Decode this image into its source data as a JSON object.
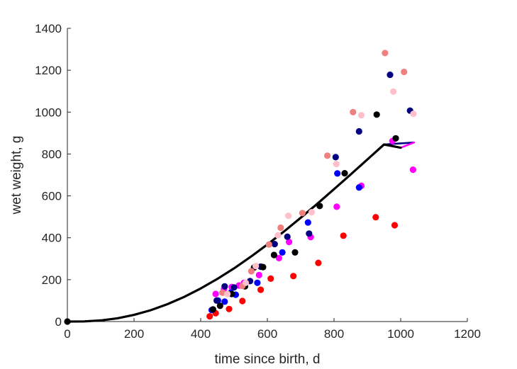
{
  "chart_data": {
    "type": "scatter",
    "title": "",
    "xlabel": "time since birth, d",
    "ylabel": "wet weight, g",
    "xlim": [
      0,
      1200
    ],
    "ylim": [
      0,
      1400
    ],
    "xticks": [
      "0",
      "200",
      "400",
      "600",
      "800",
      "1000",
      "1200"
    ],
    "yticks": [
      "0",
      "200",
      "400",
      "600",
      "800",
      "1000",
      "1200",
      "1400"
    ],
    "grid": false,
    "legend": "none",
    "series": [
      {
        "color": "#ff0000",
        "points": [
          [
            427,
            25
          ],
          [
            445,
            40
          ],
          [
            485,
            60
          ],
          [
            525,
            98
          ],
          [
            580,
            152
          ],
          [
            610,
            205
          ],
          [
            678,
            217
          ],
          [
            753,
            280
          ],
          [
            828,
            410
          ],
          [
            925,
            498
          ],
          [
            982,
            460
          ]
        ]
      },
      {
        "color": "#ff00ff",
        "points": [
          [
            445,
            132
          ],
          [
            470,
            155
          ],
          [
            493,
            165
          ],
          [
            515,
            172
          ],
          [
            530,
            185
          ],
          [
            575,
            222
          ],
          [
            635,
            303
          ],
          [
            665,
            380
          ],
          [
            730,
            403
          ],
          [
            808,
            548
          ],
          [
            882,
            648
          ],
          [
            975,
            862
          ],
          [
            1037,
            725
          ]
        ]
      },
      {
        "color": "#0000ff",
        "points": [
          [
            433,
            55
          ],
          [
            452,
            100
          ],
          [
            472,
            95
          ],
          [
            490,
            138
          ],
          [
            505,
            128
          ],
          [
            570,
            185
          ],
          [
            645,
            330
          ],
          [
            722,
            473
          ],
          [
            810,
            707
          ],
          [
            875,
            640
          ]
        ]
      },
      {
        "color": "#000080",
        "points": [
          [
            448,
            100
          ],
          [
            472,
            168
          ],
          [
            500,
            163
          ],
          [
            548,
            193
          ],
          [
            580,
            262
          ],
          [
            622,
            370
          ],
          [
            660,
            405
          ],
          [
            725,
            420
          ],
          [
            805,
            785
          ],
          [
            875,
            908
          ],
          [
            968,
            1178
          ],
          [
            1028,
            1007
          ]
        ]
      },
      {
        "color": "#000000",
        "points": [
          [
            0,
            0
          ],
          [
            437,
            58
          ],
          [
            458,
            75
          ],
          [
            493,
            132
          ],
          [
            533,
            168
          ],
          [
            560,
            258
          ],
          [
            587,
            260
          ],
          [
            620,
            318
          ],
          [
            683,
            330
          ],
          [
            757,
            552
          ],
          [
            832,
            708
          ],
          [
            928,
            988
          ],
          [
            985,
            875
          ]
        ]
      },
      {
        "color": "#f08080",
        "points": [
          [
            465,
            138
          ],
          [
            525,
            170
          ],
          [
            552,
            240
          ],
          [
            605,
            368
          ],
          [
            640,
            448
          ],
          [
            705,
            518
          ],
          [
            780,
            792
          ],
          [
            857,
            1000
          ],
          [
            953,
            1282
          ],
          [
            1010,
            1192
          ]
        ]
      },
      {
        "color": "#ffc0cb",
        "points": [
          [
            480,
            132
          ],
          [
            535,
            185
          ],
          [
            565,
            265
          ],
          [
            632,
            412
          ],
          [
            663,
            505
          ],
          [
            733,
            522
          ],
          [
            807,
            752
          ],
          [
            882,
            985
          ],
          [
            978,
            1098
          ],
          [
            1038,
            992
          ]
        ]
      }
    ],
    "fit_lines": [
      {
        "color": "#000080",
        "points": [
          [
            0,
            0
          ],
          [
            50,
            0.8
          ],
          [
            100,
            5.5
          ],
          [
            150,
            15.6
          ],
          [
            200,
            31.7
          ],
          [
            250,
            54.1
          ],
          [
            300,
            82.7
          ],
          [
            350,
            117.4
          ],
          [
            400,
            157.8
          ],
          [
            450,
            203.5
          ],
          [
            500,
            254.1
          ],
          [
            550,
            309.1
          ],
          [
            600,
            368.0
          ],
          [
            650,
            430.2
          ],
          [
            700,
            495.3
          ],
          [
            750,
            562.7
          ],
          [
            800,
            631.9
          ],
          [
            850,
            702.4
          ],
          [
            900,
            773.7
          ],
          [
            950,
            845.3
          ],
          [
            1040,
            855
          ]
        ]
      },
      {
        "color": "#ff00ff",
        "points": [
          [
            1000,
            830
          ],
          [
            1040,
            855
          ]
        ]
      },
      {
        "color": "#000000",
        "points": [
          [
            0,
            0
          ],
          [
            50,
            0.8
          ],
          [
            100,
            5.5
          ],
          [
            150,
            15.6
          ],
          [
            200,
            31.7
          ],
          [
            250,
            54.1
          ],
          [
            300,
            82.7
          ],
          [
            350,
            117.4
          ],
          [
            400,
            157.8
          ],
          [
            450,
            203.5
          ],
          [
            500,
            254.1
          ],
          [
            550,
            309.1
          ],
          [
            600,
            368.0
          ],
          [
            650,
            430.2
          ],
          [
            700,
            495.3
          ],
          [
            750,
            562.7
          ],
          [
            800,
            631.9
          ],
          [
            850,
            702.4
          ],
          [
            900,
            773.7
          ],
          [
            950,
            845.3
          ],
          [
            1000,
            830
          ]
        ]
      }
    ]
  }
}
